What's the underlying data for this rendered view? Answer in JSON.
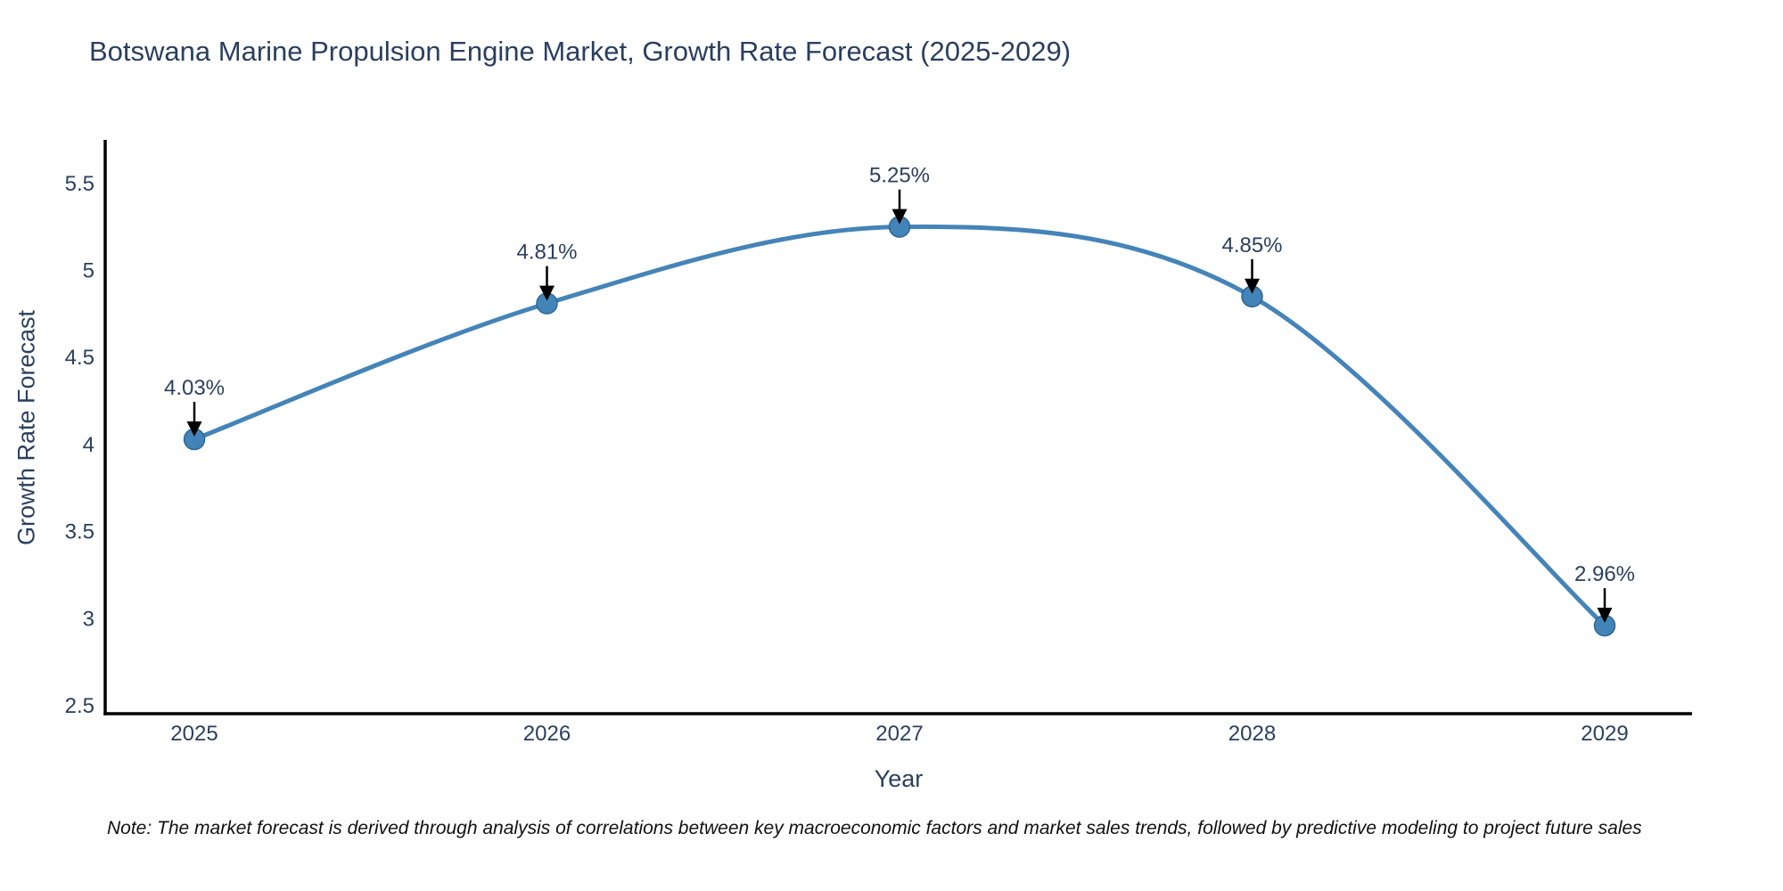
{
  "title": "Botswana Marine Propulsion Engine Market, Growth Rate Forecast (2025-2029)",
  "note": "Note: The market forecast is derived through analysis of correlations between key macroeconomic factors and market sales trends, followed by predictive modeling to project future sales",
  "chart_data": {
    "type": "line",
    "title": "Botswana Marine Propulsion Engine Market, Growth Rate Forecast (2025-2029)",
    "xlabel": "Year",
    "ylabel": "Growth Rate Forecast",
    "x": [
      2025,
      2026,
      2027,
      2028,
      2029
    ],
    "values": [
      4.03,
      4.81,
      5.25,
      4.85,
      2.96
    ],
    "point_labels": [
      "4.03%",
      "4.81%",
      "5.25%",
      "4.85%",
      "2.96%"
    ],
    "xtick_labels": [
      "2025",
      "2026",
      "2027",
      "2028",
      "2029"
    ],
    "yticks": [
      2.5,
      3,
      3.5,
      4,
      4.5,
      5,
      5.5
    ],
    "ylim": [
      2.46,
      5.79
    ],
    "grid": false,
    "legend_position": "none",
    "line_shape": "spline",
    "colors": {
      "line": "#4584b8",
      "marker_fill": "#4384b8",
      "marker_stroke": "#2f6596",
      "axis_line": "#000000",
      "text": "#2a3f5f",
      "arrow": "#000000",
      "background": "#ffffff"
    }
  }
}
